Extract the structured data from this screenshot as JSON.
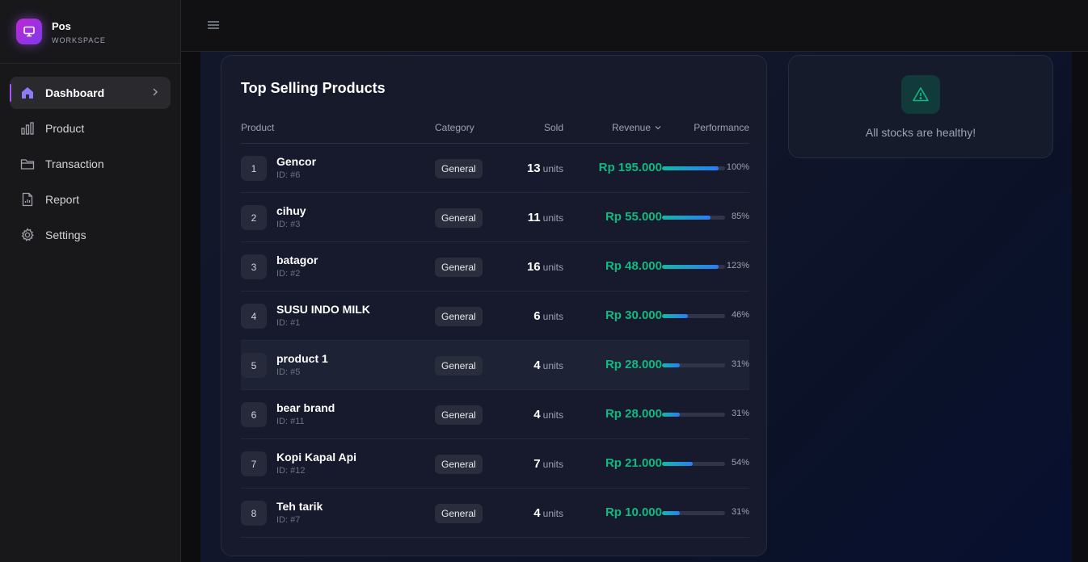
{
  "brand": {
    "name": "Pos",
    "subtitle": "WORKSPACE",
    "icon": "monitor-icon",
    "accent": "#a855f7"
  },
  "nav": [
    {
      "label": "Dashboard",
      "icon": "home-icon",
      "active": true
    },
    {
      "label": "Product",
      "icon": "bar-chart-icon",
      "active": false
    },
    {
      "label": "Transaction",
      "icon": "folder-icon",
      "active": false
    },
    {
      "label": "Report",
      "icon": "file-chart-icon",
      "active": false
    },
    {
      "label": "Settings",
      "icon": "gear-icon",
      "active": false
    }
  ],
  "top_selling": {
    "title": "Top Selling Products",
    "columns": {
      "product": "Product",
      "category": "Category",
      "sold": "Sold",
      "revenue": "Revenue",
      "performance": "Performance"
    },
    "unit_label": "units",
    "rows": [
      {
        "rank": "1",
        "name": "Gencor",
        "id": "ID: #6",
        "category": "General",
        "sold": "13",
        "revenue": "Rp 195.000",
        "performance": "100%",
        "fill": 100
      },
      {
        "rank": "2",
        "name": "cihuy",
        "id": "ID: #3",
        "category": "General",
        "sold": "11",
        "revenue": "Rp 55.000",
        "performance": "85%",
        "fill": 85
      },
      {
        "rank": "3",
        "name": "batagor",
        "id": "ID: #2",
        "category": "General",
        "sold": "16",
        "revenue": "Rp 48.000",
        "performance": "123%",
        "fill": 100
      },
      {
        "rank": "4",
        "name": "SUSU INDO MILK",
        "id": "ID: #1",
        "category": "General",
        "sold": "6",
        "revenue": "Rp 30.000",
        "performance": "46%",
        "fill": 46
      },
      {
        "rank": "5",
        "name": "product 1",
        "id": "ID: #5",
        "category": "General",
        "sold": "4",
        "revenue": "Rp 28.000",
        "performance": "31%",
        "fill": 31
      },
      {
        "rank": "6",
        "name": "bear brand",
        "id": "ID: #11",
        "category": "General",
        "sold": "4",
        "revenue": "Rp 28.000",
        "performance": "31%",
        "fill": 31
      },
      {
        "rank": "7",
        "name": "Kopi Kapal Api",
        "id": "ID: #12",
        "category": "General",
        "sold": "7",
        "revenue": "Rp 21.000",
        "performance": "54%",
        "fill": 54
      },
      {
        "rank": "8",
        "name": "Teh tarik",
        "id": "ID: #7",
        "category": "General",
        "sold": "4",
        "revenue": "Rp 10.000",
        "performance": "31%",
        "fill": 31
      }
    ]
  },
  "stock_status": {
    "message": "All stocks are healthy!",
    "icon": "warning-triangle-icon",
    "color": "#10b981"
  }
}
